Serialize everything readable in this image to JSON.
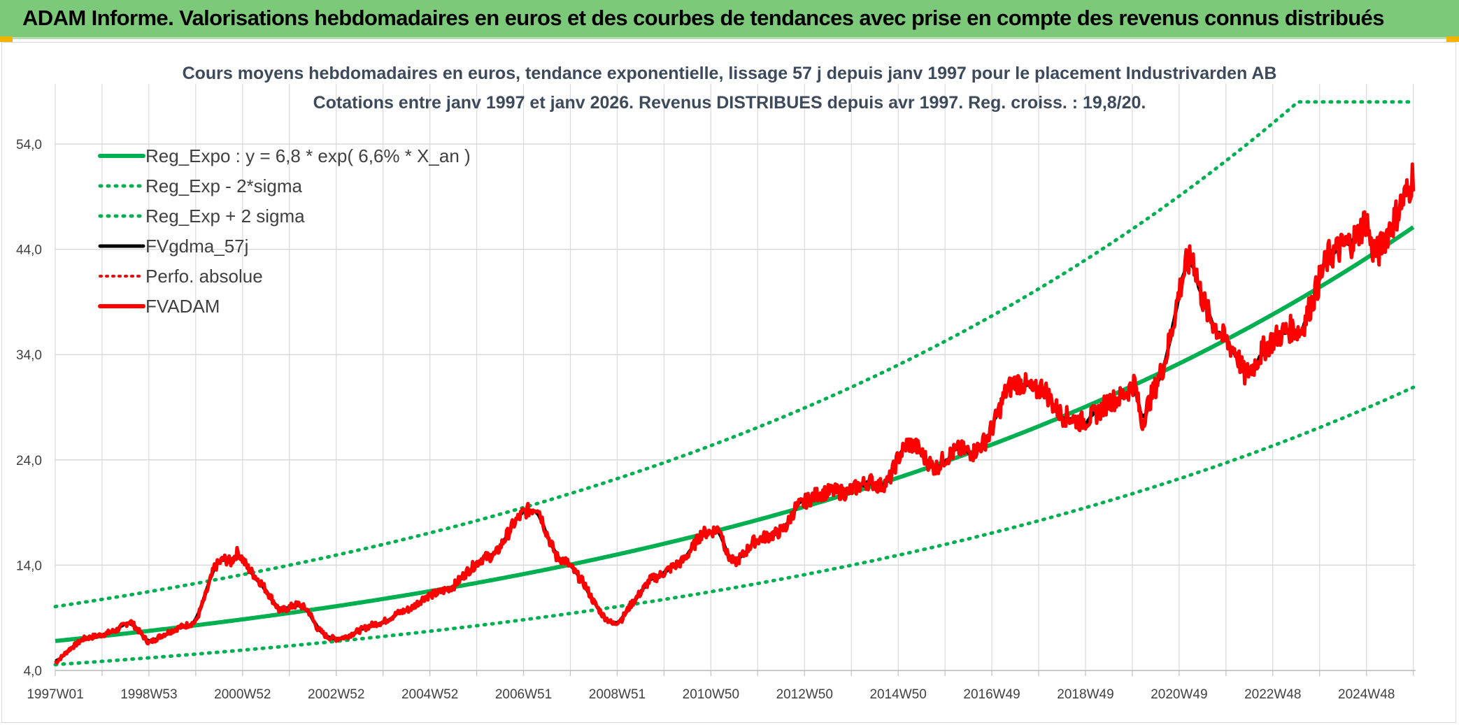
{
  "header": {
    "title": "ADAM Informe. Valorisations hebdomadaires en euros et des courbes de tendances avec prise en compte des revenus connus distribués"
  },
  "colors": {
    "banner": "#7dc97a",
    "trend": "#00b050",
    "fvgdma": "#000000",
    "fvadam": "#ff0000",
    "perfo": "#ff0000",
    "grid": "#d9d9d9"
  },
  "chart_data": {
    "type": "line",
    "title": "Cours moyens hebdomadaires en euros, tendance exponentielle, lissage 57 j depuis janv 1997 pour le placement Industrivarden AB",
    "subtitle": "Cotations entre janv 1997 et janv 2026. Revenus DISTRIBUES depuis avr 1997. Reg. croiss. : 19,8/20.",
    "xlabel": "",
    "ylabel": "",
    "x_start": 1997.0,
    "x_end": 2026.05,
    "ylim": [
      4,
      58
    ],
    "y_ticks": [
      4,
      14,
      24,
      34,
      44,
      54
    ],
    "y_tick_labels": [
      "4,0",
      "14,0",
      "24,0",
      "34,0",
      "44,0",
      "54,0"
    ],
    "x_ticks": [
      {
        "t": 1997.0,
        "label": "1997W01"
      },
      {
        "t": 1999.0,
        "label": "1998W53"
      },
      {
        "t": 2001.0,
        "label": "2000W52"
      },
      {
        "t": 2003.0,
        "label": "2002W52"
      },
      {
        "t": 2005.0,
        "label": "2004W52"
      },
      {
        "t": 2007.0,
        "label": "2006W51"
      },
      {
        "t": 2009.0,
        "label": "2008W51"
      },
      {
        "t": 2011.0,
        "label": "2010W50"
      },
      {
        "t": 2013.0,
        "label": "2012W50"
      },
      {
        "t": 2015.0,
        "label": "2014W50"
      },
      {
        "t": 2017.0,
        "label": "2016W49"
      },
      {
        "t": 2019.0,
        "label": "2018W49"
      },
      {
        "t": 2021.0,
        "label": "2020W49"
      },
      {
        "t": 2023.0,
        "label": "2022W48"
      },
      {
        "t": 2025.0,
        "label": "2024W48"
      }
    ],
    "grid": true,
    "legend_position": "top-left",
    "regression": {
      "a": 6.8,
      "rate": 0.066,
      "sigma_multiplier_lower": 0.67,
      "sigma_multiplier_upper": 1.48,
      "upper_cap": 58
    },
    "series": [
      {
        "name": "Reg_Expo : y = 6,8 * exp( 6,6% *  X_an )",
        "kind": "trend",
        "style": "solid"
      },
      {
        "name": "Reg_Exp - 2*sigma",
        "kind": "lower",
        "style": "dotted"
      },
      {
        "name": "Reg_Exp + 2 sigma",
        "kind": "upper",
        "style": "dotted"
      },
      {
        "name": "FVgdma_57j",
        "kind": "smooth",
        "style": "solid"
      },
      {
        "name": "Perfo. absolue",
        "kind": "perfo",
        "style": "dotted"
      },
      {
        "name": "FVADAM",
        "kind": "price",
        "style": "solid",
        "points": [
          [
            1997.0,
            4.7
          ],
          [
            1997.3,
            6.0
          ],
          [
            1997.6,
            7.0
          ],
          [
            1998.0,
            7.4
          ],
          [
            1998.3,
            7.8
          ],
          [
            1998.6,
            8.7
          ],
          [
            1998.85,
            7.4
          ],
          [
            1999.0,
            6.6
          ],
          [
            1999.3,
            7.4
          ],
          [
            1999.6,
            8.0
          ],
          [
            2000.0,
            8.6
          ],
          [
            2000.2,
            11.0
          ],
          [
            2000.4,
            13.8
          ],
          [
            2000.6,
            14.6
          ],
          [
            2000.75,
            14.3
          ],
          [
            2000.9,
            15.3
          ],
          [
            2001.1,
            13.8
          ],
          [
            2001.4,
            12.3
          ],
          [
            2001.6,
            11.0
          ],
          [
            2001.8,
            9.6
          ],
          [
            2002.0,
            10.0
          ],
          [
            2002.2,
            10.3
          ],
          [
            2002.4,
            9.7
          ],
          [
            2002.6,
            8.0
          ],
          [
            2002.8,
            7.2
          ],
          [
            2003.0,
            7.0
          ],
          [
            2003.2,
            7.2
          ],
          [
            2003.5,
            7.8
          ],
          [
            2003.8,
            8.4
          ],
          [
            2004.0,
            8.6
          ],
          [
            2004.3,
            9.4
          ],
          [
            2004.6,
            9.9
          ],
          [
            2004.9,
            11.0
          ],
          [
            2005.2,
            11.4
          ],
          [
            2005.5,
            12.0
          ],
          [
            2005.8,
            13.4
          ],
          [
            2006.1,
            14.6
          ],
          [
            2006.4,
            15.0
          ],
          [
            2006.6,
            16.5
          ],
          [
            2006.8,
            18.0
          ],
          [
            2007.0,
            19.0
          ],
          [
            2007.3,
            19.6
          ],
          [
            2007.5,
            17.0
          ],
          [
            2007.7,
            14.8
          ],
          [
            2007.9,
            14.4
          ],
          [
            2008.1,
            13.3
          ],
          [
            2008.3,
            12.2
          ],
          [
            2008.5,
            10.5
          ],
          [
            2008.7,
            9.2
          ],
          [
            2008.9,
            8.4
          ],
          [
            2009.1,
            8.9
          ],
          [
            2009.3,
            10.3
          ],
          [
            2009.5,
            11.4
          ],
          [
            2009.7,
            12.6
          ],
          [
            2009.9,
            13.0
          ],
          [
            2010.1,
            13.6
          ],
          [
            2010.4,
            14.4
          ],
          [
            2010.6,
            15.6
          ],
          [
            2010.8,
            17.0
          ],
          [
            2011.0,
            17.2
          ],
          [
            2011.2,
            17.5
          ],
          [
            2011.35,
            15.0
          ],
          [
            2011.5,
            14.2
          ],
          [
            2011.7,
            15.0
          ],
          [
            2011.9,
            16.2
          ],
          [
            2012.1,
            16.6
          ],
          [
            2012.4,
            17.0
          ],
          [
            2012.6,
            17.6
          ],
          [
            2012.8,
            19.4
          ],
          [
            2013.0,
            20.0
          ],
          [
            2013.3,
            20.8
          ],
          [
            2013.6,
            21.0
          ],
          [
            2013.9,
            20.9
          ],
          [
            2014.2,
            21.6
          ],
          [
            2014.4,
            22.0
          ],
          [
            2014.6,
            21.5
          ],
          [
            2014.8,
            22.0
          ],
          [
            2015.0,
            24.2
          ],
          [
            2015.2,
            25.6
          ],
          [
            2015.4,
            25.2
          ],
          [
            2015.6,
            24.0
          ],
          [
            2015.8,
            23.2
          ],
          [
            2016.0,
            24.2
          ],
          [
            2016.3,
            25.0
          ],
          [
            2016.6,
            24.7
          ],
          [
            2016.9,
            26.0
          ],
          [
            2017.1,
            28.0
          ],
          [
            2017.3,
            30.5
          ],
          [
            2017.5,
            31.4
          ],
          [
            2017.7,
            31.2
          ],
          [
            2017.9,
            30.4
          ],
          [
            2018.1,
            31.0
          ],
          [
            2018.3,
            29.3
          ],
          [
            2018.5,
            28.2
          ],
          [
            2018.7,
            28.0
          ],
          [
            2018.9,
            27.6
          ],
          [
            2019.1,
            28.0
          ],
          [
            2019.3,
            28.6
          ],
          [
            2019.5,
            29.6
          ],
          [
            2019.7,
            29.8
          ],
          [
            2019.9,
            30.5
          ],
          [
            2020.05,
            31.4
          ],
          [
            2020.2,
            27.4
          ],
          [
            2020.35,
            29.4
          ],
          [
            2020.5,
            31.0
          ],
          [
            2020.7,
            33.4
          ],
          [
            2020.85,
            36.5
          ],
          [
            2021.0,
            40.0
          ],
          [
            2021.15,
            42.5
          ],
          [
            2021.3,
            43.2
          ],
          [
            2021.45,
            40.0
          ],
          [
            2021.6,
            38.0
          ],
          [
            2021.8,
            36.5
          ],
          [
            2022.0,
            35.2
          ],
          [
            2022.2,
            34.4
          ],
          [
            2022.4,
            32.0
          ],
          [
            2022.6,
            33.0
          ],
          [
            2022.8,
            34.5
          ],
          [
            2023.0,
            35.4
          ],
          [
            2023.2,
            36.0
          ],
          [
            2023.4,
            36.5
          ],
          [
            2023.6,
            36.2
          ],
          [
            2023.75,
            38.0
          ],
          [
            2023.9,
            39.8
          ],
          [
            2024.05,
            41.8
          ],
          [
            2024.2,
            43.4
          ],
          [
            2024.4,
            44.0
          ],
          [
            2024.6,
            44.5
          ],
          [
            2024.8,
            45.2
          ],
          [
            2025.0,
            47.0
          ],
          [
            2025.1,
            44.2
          ],
          [
            2025.25,
            43.6
          ],
          [
            2025.4,
            45.2
          ],
          [
            2025.55,
            46.4
          ],
          [
            2025.75,
            48.4
          ],
          [
            2025.9,
            49.6
          ],
          [
            2026.0,
            51.2
          ]
        ]
      }
    ]
  }
}
